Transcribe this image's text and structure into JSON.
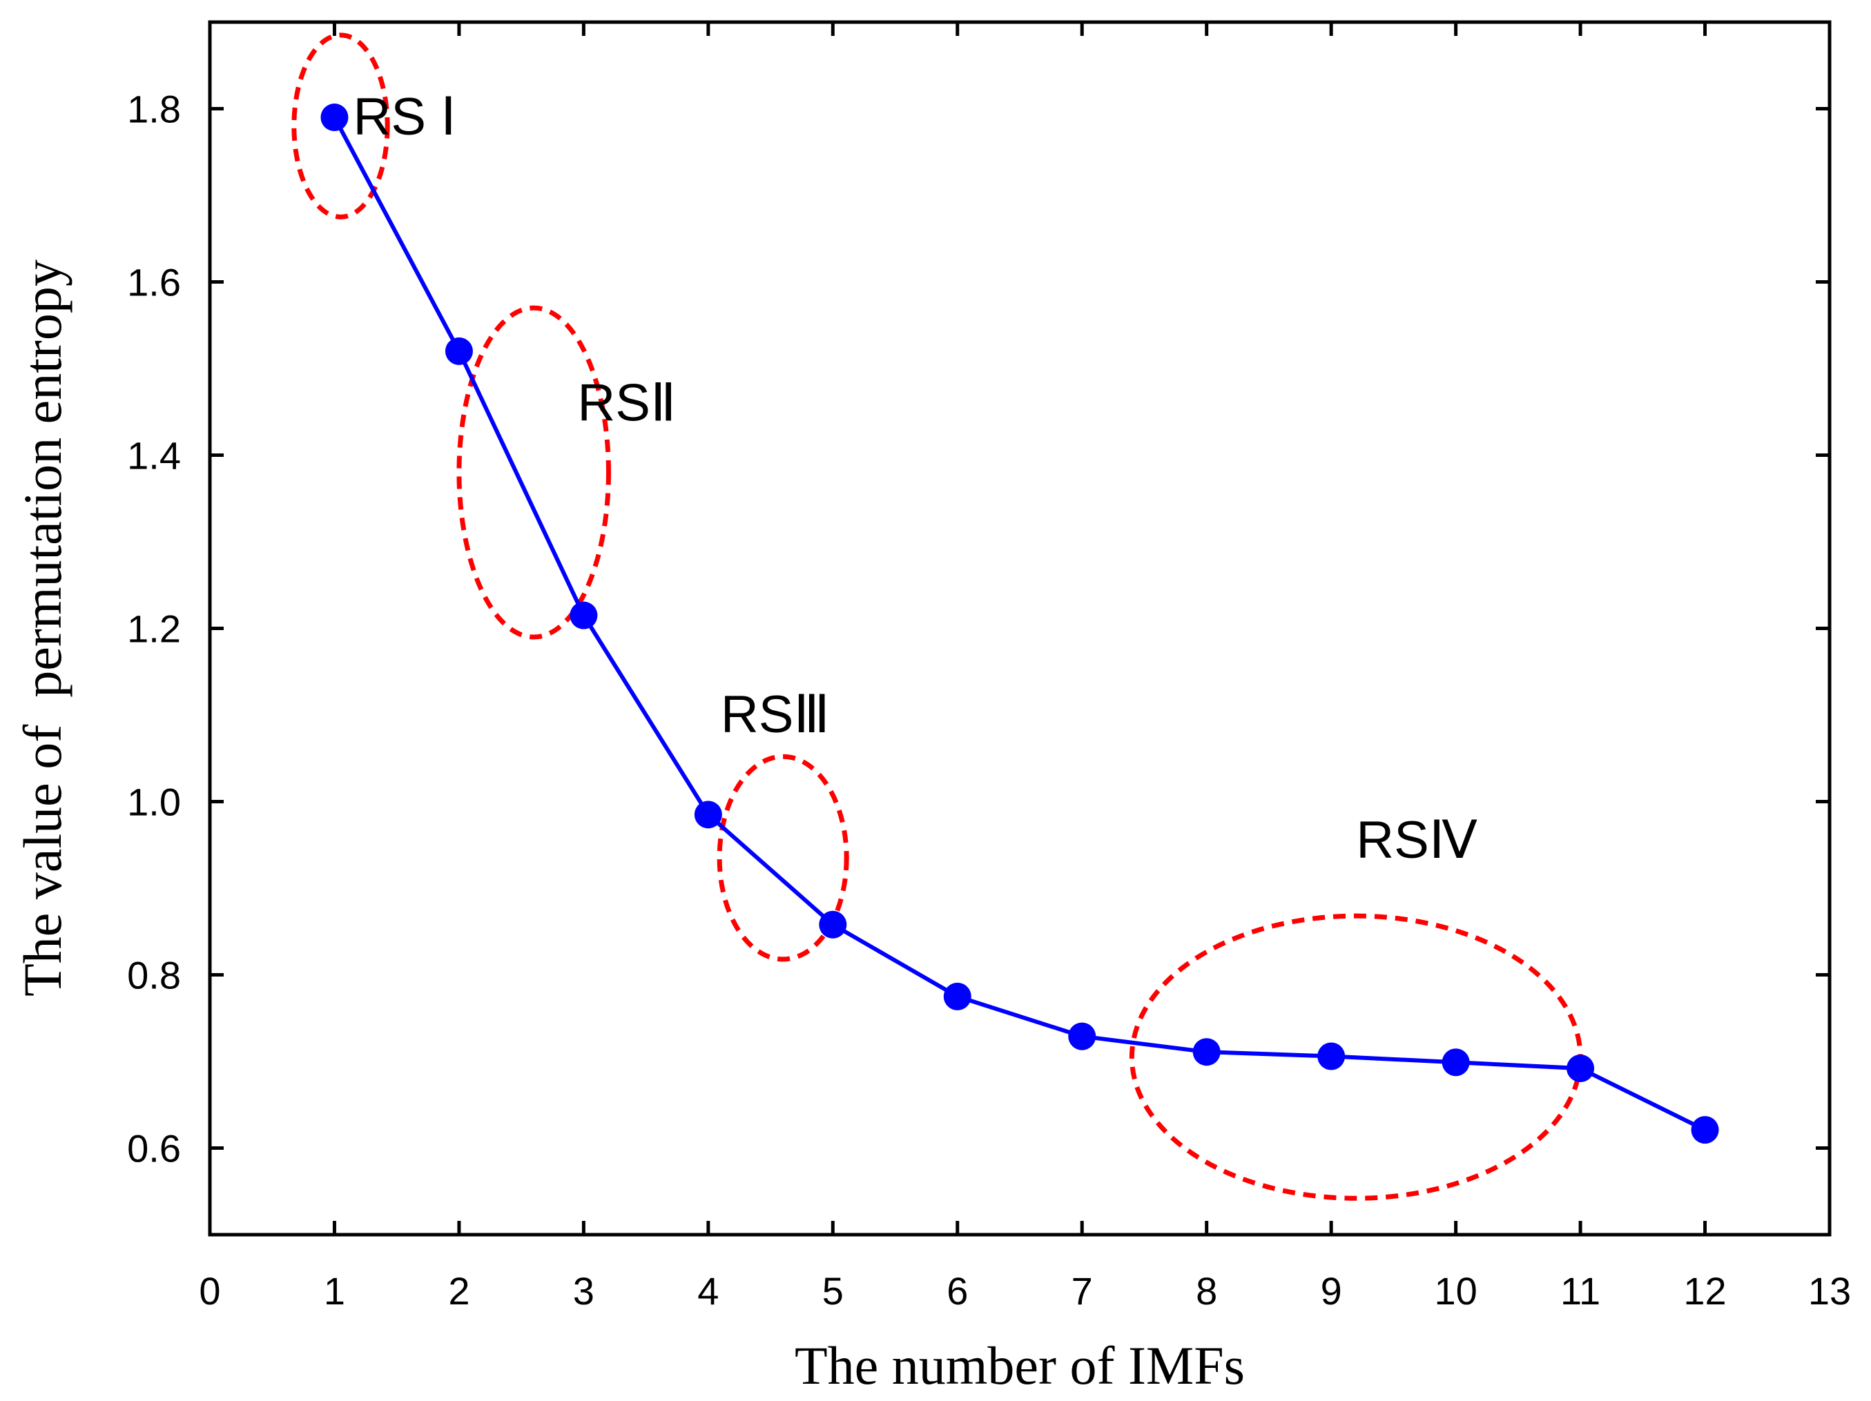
{
  "chart_data": {
    "type": "line",
    "title": "",
    "xlabel": "The number of IMFs",
    "ylabel": "The value of  permutation entropy",
    "xlim": [
      0,
      13
    ],
    "ylim": [
      0.5,
      1.9
    ],
    "xticks": [
      0,
      1,
      2,
      3,
      4,
      5,
      6,
      7,
      8,
      9,
      10,
      11,
      12,
      13
    ],
    "yticks": [
      0.6,
      0.8,
      1.0,
      1.2,
      1.4,
      1.6,
      1.8
    ],
    "ytick_labels": [
      "0.6",
      "0.8",
      "1.0",
      "1.2",
      "1.4",
      "1.6",
      "1.8"
    ],
    "grid": false,
    "series": [
      {
        "name": "Permutation entropy",
        "color": "#0000ff",
        "marker": "circle",
        "x": [
          1,
          2,
          3,
          4,
          5,
          6,
          7,
          8,
          9,
          10,
          11,
          12
        ],
        "values": [
          1.79,
          1.52,
          1.215,
          0.985,
          0.858,
          0.775,
          0.729,
          0.711,
          0.706,
          0.699,
          0.692,
          0.621
        ]
      }
    ],
    "annotations": [
      {
        "prefix": "RS ",
        "roman": "Ⅰ",
        "label_x": 1.15,
        "label_y": 1.77,
        "cx": 1.05,
        "cy": 1.78,
        "rx": 0.75,
        "ry": 0.105
      },
      {
        "prefix": "RS",
        "roman": "Ⅱ",
        "label_x": 2.95,
        "label_y": 1.44,
        "cx": 2.6,
        "cy": 1.38,
        "rx": 1.2,
        "ry": 0.19
      },
      {
        "prefix": "RS",
        "roman": "Ⅲ",
        "label_x": 4.1,
        "label_y": 1.08,
        "cx": 4.6,
        "cy": 0.935,
        "rx": 1.02,
        "ry": 0.117
      },
      {
        "prefix": "RS",
        "roman": "Ⅳ",
        "label_x": 9.2,
        "label_y": 0.935,
        "cx": 9.2,
        "cy": 0.705,
        "rx": 3.6,
        "ry": 0.163
      }
    ],
    "annotation_color": "#ff0000"
  }
}
